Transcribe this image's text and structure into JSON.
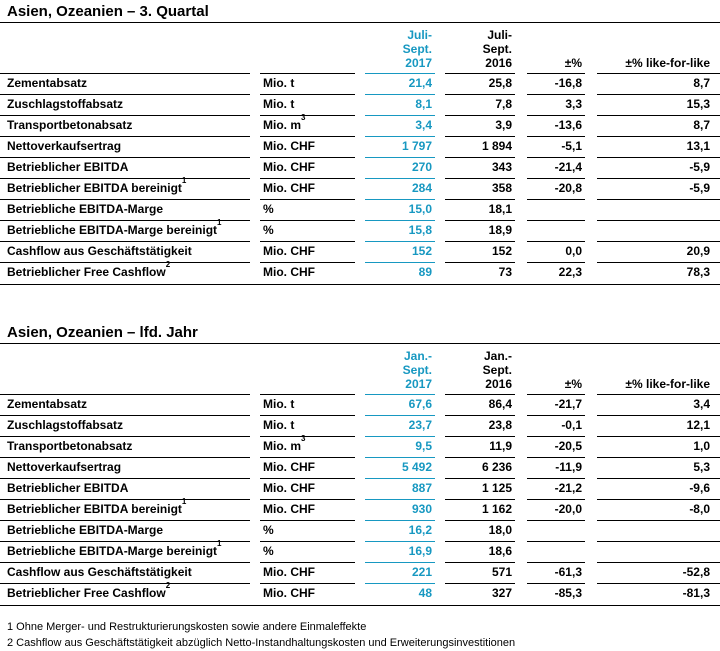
{
  "colors": {
    "accent": "#1798c1",
    "text": "#000000",
    "rule": "#000000"
  },
  "tables": [
    {
      "title": "Asien, Ozeanien – 3. Quartal",
      "header": {
        "y2017": [
          "Juli-",
          "Sept.",
          "2017"
        ],
        "y2016": [
          "Juli-",
          "Sept.",
          "2016"
        ],
        "pct": "±%",
        "lfl": "±% like-for-like"
      },
      "rows": [
        {
          "label": "Zementabsatz",
          "label_sup": "",
          "unit": "Mio. t",
          "unit_sup": "",
          "y2017": "21,4",
          "y2016": "25,8",
          "pct": "-16,8",
          "lfl": "8,7"
        },
        {
          "label": "Zuschlagstoffabsatz",
          "label_sup": "",
          "unit": "Mio. t",
          "unit_sup": "",
          "y2017": "8,1",
          "y2016": "7,8",
          "pct": "3,3",
          "lfl": "15,3"
        },
        {
          "label": "Transportbetonabsatz",
          "label_sup": "",
          "unit": "Mio. m",
          "unit_sup": "3",
          "y2017": "3,4",
          "y2016": "3,9",
          "pct": "-13,6",
          "lfl": "8,7"
        },
        {
          "label": "Nettoverkaufsertrag",
          "label_sup": "",
          "unit": "Mio. CHF",
          "unit_sup": "",
          "y2017": "1 797",
          "y2016": "1 894",
          "pct": "-5,1",
          "lfl": "13,1"
        },
        {
          "label": "Betrieblicher EBITDA",
          "label_sup": "",
          "unit": "Mio. CHF",
          "unit_sup": "",
          "y2017": "270",
          "y2016": "343",
          "pct": "-21,4",
          "lfl": "-5,9"
        },
        {
          "label": "Betrieblicher EBITDA bereinigt",
          "label_sup": "1",
          "unit": "Mio. CHF",
          "unit_sup": "",
          "y2017": "284",
          "y2016": "358",
          "pct": "-20,8",
          "lfl": "-5,9"
        },
        {
          "label": "Betriebliche EBITDA-Marge",
          "label_sup": "",
          "unit": "%",
          "unit_sup": "",
          "y2017": "15,0",
          "y2016": "18,1",
          "pct": "",
          "lfl": ""
        },
        {
          "label": "Betriebliche EBITDA-Marge bereinigt",
          "label_sup": "1",
          "unit": "%",
          "unit_sup": "",
          "y2017": "15,8",
          "y2016": "18,9",
          "pct": "",
          "lfl": ""
        },
        {
          "label": "Cashflow aus Geschäftstätigkeit",
          "label_sup": "",
          "unit": "Mio. CHF",
          "unit_sup": "",
          "y2017": "152",
          "y2016": "152",
          "pct": "0,0",
          "lfl": "20,9"
        },
        {
          "label": "Betrieblicher Free Cashflow",
          "label_sup": "2",
          "unit": "Mio. CHF",
          "unit_sup": "",
          "y2017": "89",
          "y2016": "73",
          "pct": "22,3",
          "lfl": "78,3"
        }
      ]
    },
    {
      "title": "Asien, Ozeanien – lfd. Jahr",
      "header": {
        "y2017": [
          "Jan.-",
          "Sept.",
          "2017"
        ],
        "y2016": [
          "Jan.-",
          "Sept.",
          "2016"
        ],
        "pct": "±%",
        "lfl": "±% like-for-like"
      },
      "rows": [
        {
          "label": "Zementabsatz",
          "label_sup": "",
          "unit": "Mio. t",
          "unit_sup": "",
          "y2017": "67,6",
          "y2016": "86,4",
          "pct": "-21,7",
          "lfl": "3,4"
        },
        {
          "label": "Zuschlagstoffabsatz",
          "label_sup": "",
          "unit": "Mio. t",
          "unit_sup": "",
          "y2017": "23,7",
          "y2016": "23,8",
          "pct": "-0,1",
          "lfl": "12,1"
        },
        {
          "label": "Transportbetonabsatz",
          "label_sup": "",
          "unit": "Mio. m",
          "unit_sup": "3",
          "y2017": "9,5",
          "y2016": "11,9",
          "pct": "-20,5",
          "lfl": "1,0"
        },
        {
          "label": "Nettoverkaufsertrag",
          "label_sup": "",
          "unit": "Mio. CHF",
          "unit_sup": "",
          "y2017": "5 492",
          "y2016": "6 236",
          "pct": "-11,9",
          "lfl": "5,3"
        },
        {
          "label": "Betrieblicher EBITDA",
          "label_sup": "",
          "unit": "Mio. CHF",
          "unit_sup": "",
          "y2017": "887",
          "y2016": "1 125",
          "pct": "-21,2",
          "lfl": "-9,6"
        },
        {
          "label": "Betrieblicher EBITDA bereinigt",
          "label_sup": "1",
          "unit": "Mio. CHF",
          "unit_sup": "",
          "y2017": "930",
          "y2016": "1 162",
          "pct": "-20,0",
          "lfl": "-8,0"
        },
        {
          "label": "Betriebliche EBITDA-Marge",
          "label_sup": "",
          "unit": "%",
          "unit_sup": "",
          "y2017": "16,2",
          "y2016": "18,0",
          "pct": "",
          "lfl": ""
        },
        {
          "label": "Betriebliche EBITDA-Marge bereinigt",
          "label_sup": "1",
          "unit": "%",
          "unit_sup": "",
          "y2017": "16,9",
          "y2016": "18,6",
          "pct": "",
          "lfl": ""
        },
        {
          "label": "Cashflow aus Geschäftstätigkeit",
          "label_sup": "",
          "unit": "Mio. CHF",
          "unit_sup": "",
          "y2017": "221",
          "y2016": "571",
          "pct": "-61,3",
          "lfl": "-52,8"
        },
        {
          "label": "Betrieblicher Free Cashflow",
          "label_sup": "2",
          "unit": "Mio. CHF",
          "unit_sup": "",
          "y2017": "48",
          "y2016": "327",
          "pct": "-85,3",
          "lfl": "-81,3"
        }
      ]
    }
  ],
  "footnotes": [
    "1 Ohne Merger- und Restrukturierungskosten sowie andere Einmaleffekte",
    "2 Cashflow aus Geschäftstätigkeit abzüglich Netto-Instandhaltungskosten und Erweiterungsinvestitionen"
  ]
}
